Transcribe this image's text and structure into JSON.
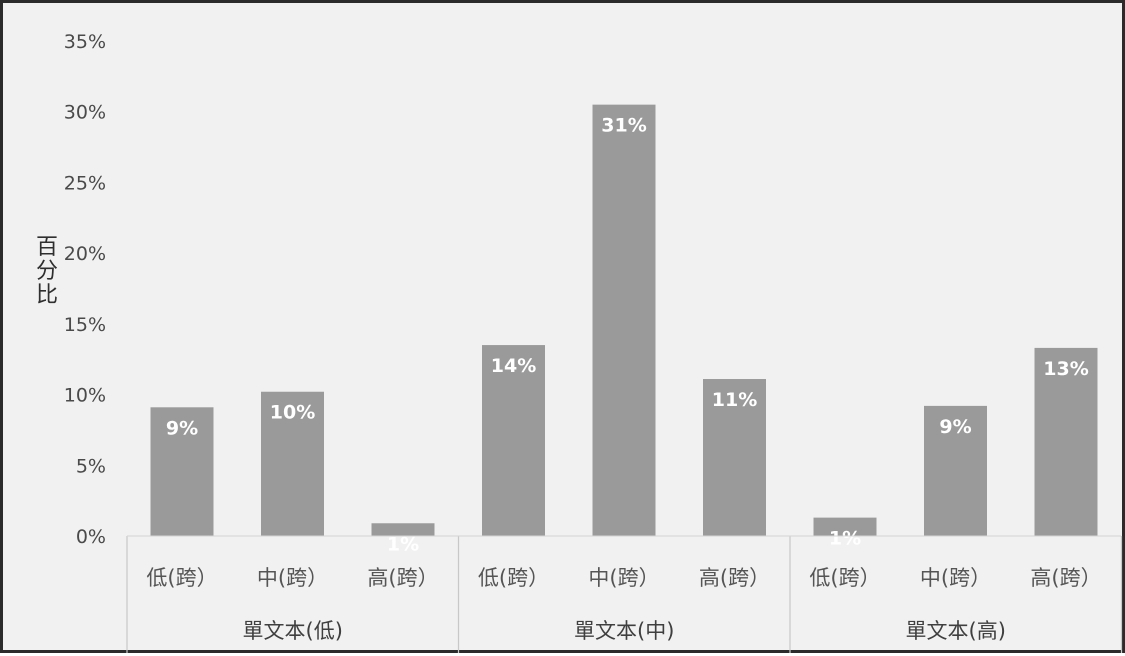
{
  "chart_data": {
    "type": "bar",
    "title": "",
    "xlabel": "",
    "ylabel": "百分比",
    "ylim": [
      0,
      0.35
    ],
    "yticks": [
      "0%",
      "5%",
      "10%",
      "15%",
      "20%",
      "25%",
      "30%",
      "35%"
    ],
    "grid": false,
    "legend": "none",
    "groups": [
      {
        "name": "單文本(低)",
        "categories": [
          "低(跨）",
          "中(跨）",
          "高(跨）"
        ],
        "values": [
          0.091,
          0.102,
          0.009
        ],
        "labels": [
          "9%",
          "10%",
          "1%"
        ]
      },
      {
        "name": "單文本(中)",
        "categories": [
          "低(跨）",
          "中(跨）",
          "高(跨）"
        ],
        "values": [
          0.135,
          0.305,
          0.111
        ],
        "labels": [
          "14%",
          "31%",
          "11%"
        ]
      },
      {
        "name": "單文本(高)",
        "categories": [
          "低(跨）",
          "中(跨）",
          "高(跨）"
        ],
        "values": [
          0.013,
          0.092,
          0.133
        ],
        "labels": [
          "1%",
          "9%",
          "13%"
        ]
      }
    ],
    "colors": {
      "bar": "#9a9a9a",
      "label": "#ffffff",
      "background": "#f1f1f1"
    }
  }
}
